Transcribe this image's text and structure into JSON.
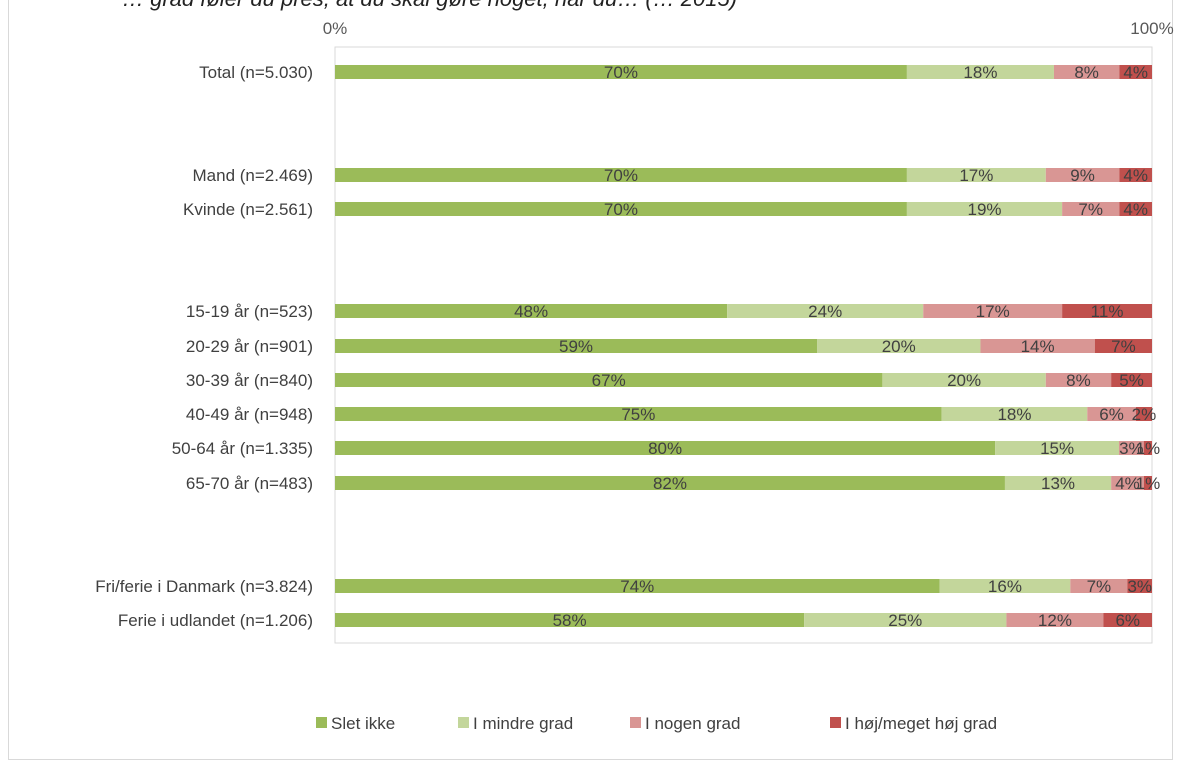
{
  "chart_data": {
    "type": "bar",
    "orientation": "horizontal",
    "stacked": "percent",
    "title": "",
    "partial_title": "… grad føler du pres, at du skal gøre noget, når du… (… 2015)",
    "x_ticks": [
      "0%",
      "100%"
    ],
    "xlim": [
      0,
      100
    ],
    "legend_position": "bottom",
    "categories": [
      "Total (n=5.030)",
      "Mand (n=2.469)",
      "Kvinde (n=2.561)",
      "15-19 år (n=523)",
      "20-29 år (n=901)",
      "30-39 år (n=840)",
      "40-49 år (n=948)",
      "50-64 år (n=1.335)",
      "65-70 år (n=483)",
      "Fri/ferie i Danmark (n=3.824)",
      "Ferie i udlandet (n=1.206)"
    ],
    "series": [
      {
        "name": "Slet ikke",
        "color": "#9BBB59",
        "values": [
          70,
          70,
          70,
          48,
          59,
          67,
          75,
          80,
          82,
          74,
          58
        ]
      },
      {
        "name": "I mindre grad",
        "color": "#C3D69B",
        "values": [
          18,
          17,
          19,
          24,
          20,
          20,
          18,
          15,
          13,
          16,
          25
        ]
      },
      {
        "name": "I nogen grad",
        "color": "#D99694",
        "values": [
          8,
          9,
          7,
          17,
          14,
          8,
          6,
          3,
          4,
          7,
          12
        ]
      },
      {
        "name": "I høj/meget høj grad",
        "color": "#C0504D",
        "values": [
          4,
          4,
          4,
          11,
          7,
          5,
          2,
          1,
          1,
          3,
          6
        ]
      }
    ],
    "data_labels": [
      [
        "70%",
        "18%",
        "8%",
        "4%"
      ],
      [
        "70%",
        "17%",
        "9%",
        "4%"
      ],
      [
        "70%",
        "19%",
        "7%",
        "4%"
      ],
      [
        "48%",
        "24%",
        "17%",
        "11%"
      ],
      [
        "59%",
        "20%",
        "14%",
        "7%"
      ],
      [
        "67%",
        "20%",
        "8%",
        "5%"
      ],
      [
        "75%",
        "18%",
        "6%",
        "2%"
      ],
      [
        "80%",
        "15%",
        "3%",
        "1%"
      ],
      [
        "82%",
        "13%",
        "4%",
        "1%"
      ],
      [
        "74%",
        "16%",
        "7%",
        "3%"
      ],
      [
        "58%",
        "25%",
        "12%",
        "6%"
      ]
    ]
  }
}
